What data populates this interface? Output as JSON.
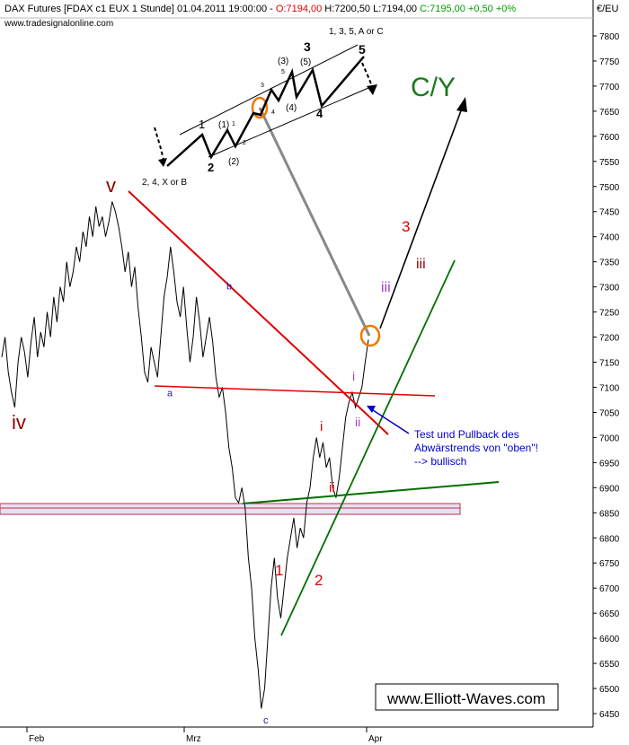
{
  "header": {
    "instrument": "DAX Futures [FDAX c1 EUX  1 Stunde] 01.04.2011 19:00:00 - ",
    "open": "O:7194,00",
    "high": " H:7200,50",
    "low": " L:7194,00",
    "close_change": " C:7195,00 +0,50 +0%",
    "website": "www.tradesignalonline.com",
    "currency": "€/EU"
  },
  "watermark": "www.Elliott-Waves.com",
  "chart_data": {
    "type": "line",
    "title": "DAX Futures [FDAX c1 EUX  1 Stunde] 01.04.2011 19:00:00",
    "x_tick_labels": [
      "Feb",
      "Mrz",
      "Apr"
    ],
    "y_ticks": [
      6450,
      6500,
      6550,
      6600,
      6650,
      6700,
      6750,
      6800,
      6850,
      6900,
      6950,
      7000,
      7050,
      7100,
      7150,
      7200,
      7250,
      7300,
      7350,
      7400,
      7450,
      7500,
      7550,
      7600,
      7650,
      7700,
      7750,
      7800
    ],
    "ylim": [
      6425,
      7830
    ],
    "axis_position": "right",
    "grid": false,
    "series": [
      {
        "values": [
          7160,
          7200,
          7130,
          7090,
          7060,
          7150,
          7200,
          7170,
          7120,
          7190,
          7240,
          7160,
          7210,
          7180,
          7250,
          7200,
          7280,
          7230,
          7300,
          7270,
          7350,
          7300,
          7330,
          7380,
          7350,
          7410,
          7380,
          7440,
          7400,
          7460,
          7420,
          7440,
          7400,
          7430,
          7470,
          7450,
          7420,
          7380,
          7330,
          7370,
          7300,
          7340,
          7260,
          7200,
          7130,
          7110,
          7180,
          7150,
          7120,
          7200,
          7280,
          7320,
          7380,
          7330,
          7270,
          7240,
          7300,
          7220,
          7150,
          7200,
          7280,
          7230,
          7160,
          7200,
          7240,
          7190,
          7120,
          7080,
          7100,
          7050,
          6980,
          6940,
          6880,
          6870,
          6900,
          6860,
          6760,
          6700,
          6600,
          6540,
          6460,
          6500,
          6600,
          6700,
          6760,
          6680,
          6640,
          6700,
          6760,
          6800,
          6840,
          6780,
          6820,
          6800,
          6870,
          6900,
          6960,
          7000,
          6960,
          6990,
          6940,
          6960,
          6900,
          6880,
          6920,
          6980,
          7040,
          7070,
          7090,
          7060,
          7080,
          7100,
          7150,
          7195
        ]
      }
    ],
    "price_markers": [
      {
        "label": "a",
        "price": 7100
      },
      {
        "label": "b",
        "price": 7320
      },
      {
        "label": "c",
        "price": 6470
      }
    ]
  },
  "annotations": {
    "wave_iv": "iv",
    "wave_v": "v",
    "wave_c_y": "C/Y",
    "wave_3_red": "3",
    "wave_iii_red": "iii",
    "wave_iii_purple": "iii",
    "wave_i_red": "i",
    "wave_ii_red": "ii",
    "wave_i_purple": "i",
    "wave_ii_purple": "ii",
    "wave_1_red": "1",
    "wave_2_red": "2",
    "inset_label_235": "2, 4, X or B",
    "inset_label_135": "1, 3, 5, A or C",
    "inset_w1": "1",
    "inset_w2": "2",
    "inset_w3": "3",
    "inset_w4": "4",
    "inset_w5": "5",
    "inset_p1": "(1)",
    "inset_p2": "(2)",
    "inset_p3": "(3)",
    "inset_p4": "(4)",
    "inset_p5": "(5)",
    "inset_s1": "1",
    "inset_s2": "2",
    "inset_s3": "3",
    "inset_s4": "4",
    "inset_s5": "5",
    "note_line1": "Test und Pullback des",
    "note_line2": "Abwärstrends von \"oben\"!",
    "note_line3": "--> bullisch"
  },
  "colors": {
    "price": "#000000",
    "downtrend": "#e00000",
    "uptrend": "#007000",
    "support_zone": "#e8e0f4",
    "support_border": "#c03040",
    "projection": "#888888",
    "circle": "#f07800",
    "wave_red": "#e00000",
    "wave_purple": "#a040d0",
    "wave_darkred": "#8b0000",
    "wave_green": "#1a7a1a",
    "note_blue": "#0000cc",
    "label_blue": "#1e1ea0"
  }
}
